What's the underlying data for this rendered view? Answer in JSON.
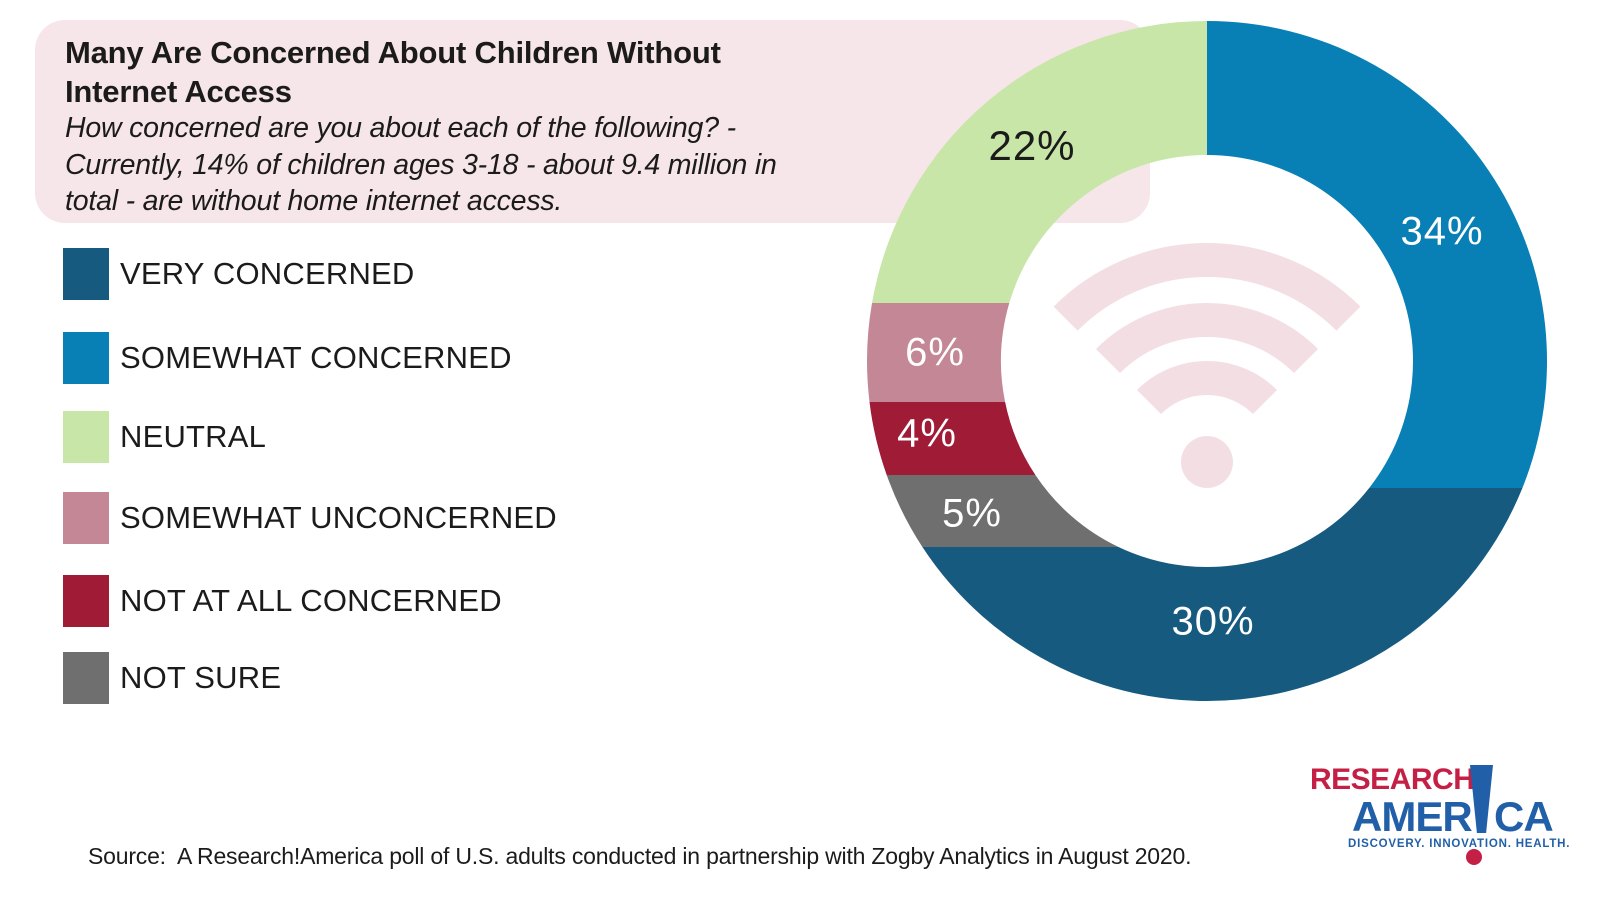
{
  "header": {
    "title_lines": [
      "Many Are Concerned About Children Without",
      "Internet Access"
    ],
    "subtitle_lines": [
      "How concerned are you about each of the following? -",
      "Currently, 14% of children ages 3-18 - about 9.4 million in",
      "total - are without home internet access."
    ]
  },
  "chart_data": {
    "type": "pie",
    "subtype": "donut",
    "title": "Many Are Concerned About Children Without Internet Access",
    "start": "top",
    "direction": "clockwise",
    "hole_ratio": 0.61,
    "center_icon": "wifi",
    "center_icon_color": "#f3dfe3",
    "segments": [
      {
        "label": "SOMEWHAT CONCERNED",
        "value": 34,
        "display": "34%",
        "color": "#0980b5",
        "label_color": "#ffffff"
      },
      {
        "label": "VERY CONCERNED",
        "value": 30,
        "display": "30%",
        "color": "#175a80",
        "label_color": "#ffffff"
      },
      {
        "label": "NOT SURE",
        "value": 5,
        "display": "5%",
        "color": "#6f6f6f",
        "label_color": "#ffffff"
      },
      {
        "label": "NOT AT ALL CONCERNED",
        "value": 4,
        "display": "4%",
        "color": "#9f1b36",
        "label_color": "#ffffff"
      },
      {
        "label": "SOMEWHAT UNCONCERNED",
        "value": 6,
        "display": "6%",
        "color": "#c38795",
        "label_color": "#ffffff"
      },
      {
        "label": "NEUTRAL",
        "value": 22,
        "display": "22%",
        "color": "#c8e6a7",
        "label_color": "#1b1b1b"
      }
    ],
    "legend_position": "left"
  },
  "colors": {
    "header_background": "#f6e5e9",
    "wifi_icon": "#f3dfe3",
    "logo_red": "#c41f45",
    "logo_blue": "#2160a8",
    "text": "#1b1b1b"
  },
  "logo": {
    "word_top": "RESEARCH",
    "word_bottom_left": "AMER",
    "word_bottom_right": "CA",
    "bang": "!",
    "tagline": "DISCOVERY. INNOVATION. HEALTH."
  },
  "source": {
    "text": "Source:  A Research!America poll of U.S. adults conducted in partnership with Zogby Analytics in August 2020."
  }
}
